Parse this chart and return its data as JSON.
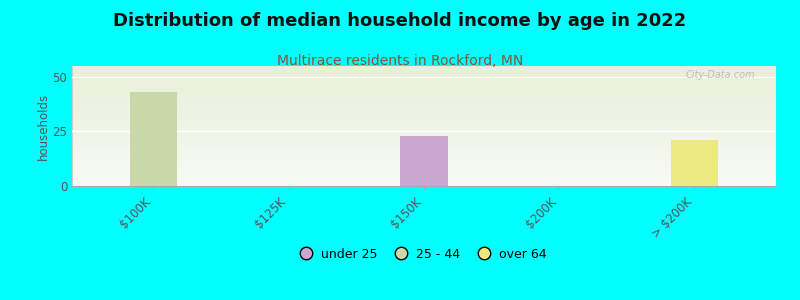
{
  "title": "Distribution of median household income by age in 2022",
  "subtitle": "Multirace residents in Rockford, MN",
  "ylabel": "households",
  "background_color": "#00FFFF",
  "plot_bg_grad_top": "#e8f0d8",
  "plot_bg_grad_bottom": "#f8faf5",
  "categories": [
    "$100K",
    "$125K",
    "$150K",
    "$200K",
    "> $200K"
  ],
  "bar_width": 0.35,
  "series": [
    {
      "name": "under 25",
      "color": "#c9a8d0",
      "values": [
        0,
        0,
        23,
        0,
        0
      ]
    },
    {
      "name": "25 - 44",
      "color": "#c8d8a8",
      "values": [
        43,
        0,
        0,
        0,
        0
      ]
    },
    {
      "name": "over 64",
      "color": "#eaea80",
      "values": [
        0,
        0,
        0,
        0,
        21
      ]
    }
  ],
  "ylim": [
    0,
    55
  ],
  "yticks": [
    0,
    25,
    50
  ],
  "title_fontsize": 13,
  "subtitle_fontsize": 10,
  "subtitle_color": "#885533",
  "watermark": "City-Data.com",
  "watermark_color": "#b0b8b0"
}
